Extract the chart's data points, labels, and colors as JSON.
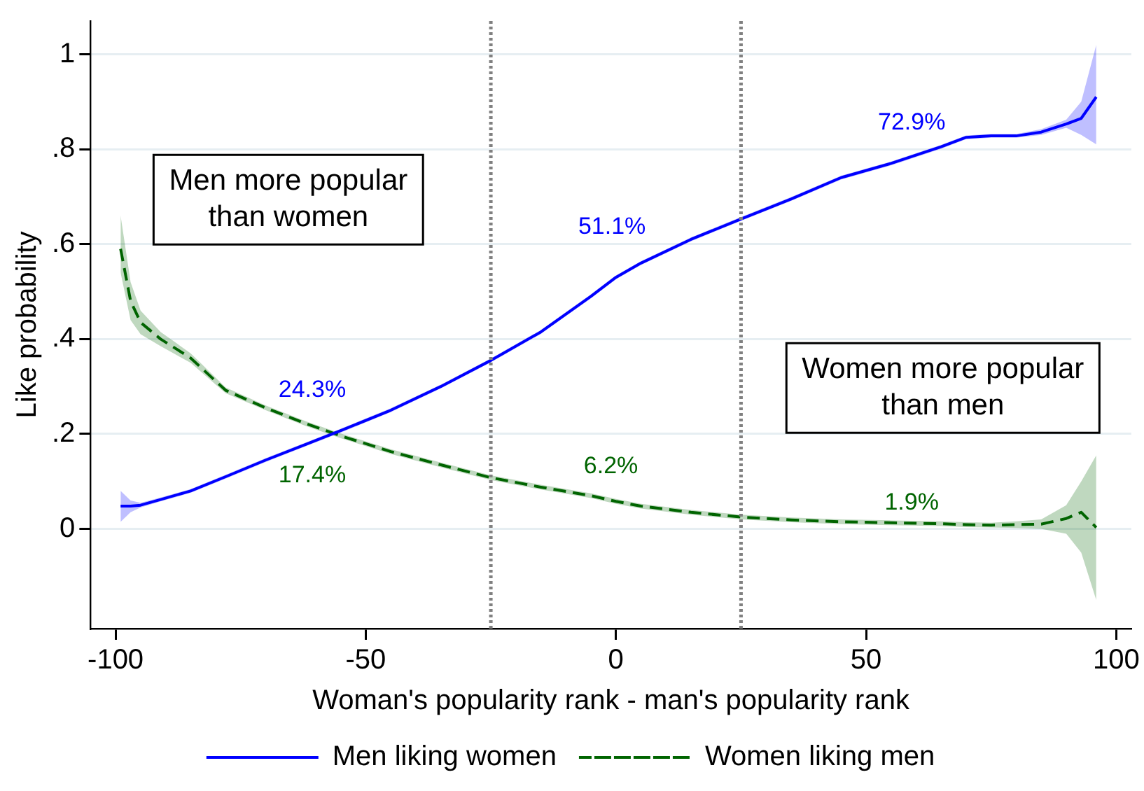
{
  "chart_data": {
    "type": "line",
    "xlabel": "Woman's popularity rank - man's popularity rank",
    "ylabel": "Like probability",
    "x": [
      -99,
      -97,
      -95,
      -91,
      -85,
      -78,
      -70,
      -62,
      -55,
      -45,
      -35,
      -25,
      -15,
      -5,
      0,
      5,
      15,
      25,
      35,
      45,
      55,
      65,
      70,
      75,
      80,
      85,
      90,
      93,
      96
    ],
    "series": [
      {
        "name": "Men liking women",
        "color": "#0000ff",
        "line_style": "solid",
        "values": [
          0.048,
          0.048,
          0.05,
          0.062,
          0.08,
          0.11,
          0.145,
          0.178,
          0.207,
          0.25,
          0.3,
          0.355,
          0.415,
          0.49,
          0.53,
          0.56,
          0.61,
          0.653,
          0.695,
          0.74,
          0.77,
          0.805,
          0.825,
          0.828,
          0.828,
          0.836,
          0.853,
          0.865,
          0.91
        ],
        "lower": [
          0.015,
          0.035,
          0.045,
          0.058,
          0.076,
          0.106,
          0.141,
          0.174,
          0.203,
          0.246,
          0.296,
          0.351,
          0.411,
          0.486,
          0.526,
          0.556,
          0.606,
          0.649,
          0.691,
          0.736,
          0.766,
          0.801,
          0.821,
          0.824,
          0.824,
          0.83,
          0.845,
          0.83,
          0.81
        ],
        "upper": [
          0.08,
          0.06,
          0.055,
          0.066,
          0.084,
          0.114,
          0.149,
          0.182,
          0.211,
          0.254,
          0.304,
          0.359,
          0.419,
          0.494,
          0.534,
          0.564,
          0.614,
          0.657,
          0.699,
          0.744,
          0.774,
          0.809,
          0.829,
          0.832,
          0.832,
          0.842,
          0.862,
          0.9,
          1.02
        ]
      },
      {
        "name": "Women liking men",
        "color": "#006400",
        "line_style": "dashed",
        "values": [
          0.59,
          0.48,
          0.435,
          0.4,
          0.36,
          0.292,
          0.255,
          0.222,
          0.196,
          0.163,
          0.135,
          0.108,
          0.088,
          0.07,
          0.058,
          0.048,
          0.035,
          0.025,
          0.019,
          0.015,
          0.013,
          0.011,
          0.009,
          0.008,
          0.009,
          0.01,
          0.022,
          0.035,
          0.003
        ],
        "lower": [
          0.54,
          0.44,
          0.41,
          0.385,
          0.35,
          0.286,
          0.25,
          0.217,
          0.191,
          0.158,
          0.13,
          0.103,
          0.083,
          0.065,
          0.053,
          0.043,
          0.03,
          0.02,
          0.014,
          0.01,
          0.008,
          0.006,
          0.004,
          0.003,
          0.002,
          0.0,
          -0.01,
          -0.05,
          -0.15
        ],
        "upper": [
          0.66,
          0.52,
          0.46,
          0.415,
          0.37,
          0.298,
          0.26,
          0.227,
          0.201,
          0.168,
          0.14,
          0.113,
          0.093,
          0.075,
          0.063,
          0.053,
          0.04,
          0.03,
          0.024,
          0.02,
          0.018,
          0.016,
          0.014,
          0.013,
          0.016,
          0.02,
          0.05,
          0.1,
          0.155
        ]
      }
    ],
    "xlim": [
      -105,
      103
    ],
    "xticks": [
      -100,
      -50,
      0,
      50,
      100
    ],
    "ylim": [
      -0.21,
      1.07
    ],
    "yticks": [
      0,
      {
        "value": 0.2,
        "label": ".2"
      },
      {
        "value": 0.4,
        "label": ".4"
      },
      {
        "value": 0.6,
        "label": ".6"
      },
      {
        "value": 0.8,
        "label": ".8"
      },
      1
    ],
    "grid": "y",
    "legend": "bottom",
    "marker": "none",
    "ref_lines": [
      {
        "axis": "x",
        "value": -25,
        "color": "#808080",
        "line_style": "dotted"
      },
      {
        "axis": "x",
        "value": 25,
        "color": "#808080",
        "line_style": "dotted"
      }
    ],
    "annotations": [
      "Men more popular\nthan women",
      "Women more popular\nthan men",
      "24.3%",
      "17.4%",
      "51.1%",
      "6.2%",
      "72.9%",
      "1.9%"
    ]
  }
}
